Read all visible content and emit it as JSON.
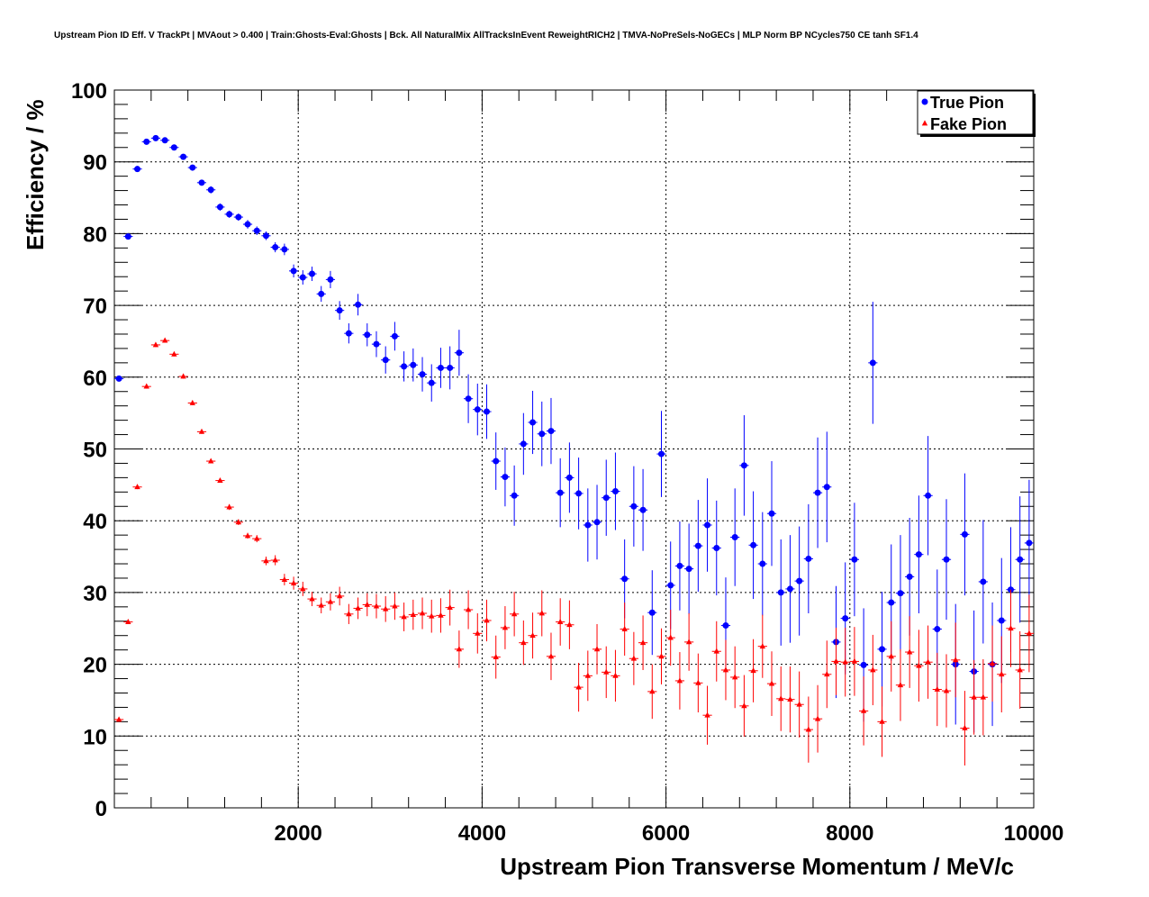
{
  "chart_data": {
    "type": "scatter",
    "title": "Upstream Pion ID Eff. V TrackPt | MVAout > 0.400 | Train:Ghosts-Eval:Ghosts | Bck. All NaturalMix AllTracksInEvent ReweightRICH2 | TMVA-NoPreSels-NoGECs | MLP Norm BP NCycles750 CE tanh SF1.4",
    "xlabel": "Upstream Pion Transverse Momentum / MeV/c",
    "ylabel": "Efficiency / %",
    "xlim": [
      0,
      10000
    ],
    "ylim": [
      0,
      100
    ],
    "xticks": [
      2000,
      4000,
      6000,
      8000,
      10000
    ],
    "yticks": [
      0,
      10,
      20,
      30,
      40,
      50,
      60,
      70,
      80,
      90,
      100
    ],
    "grid": true,
    "legend_position": "top-right",
    "bin_width": 100,
    "series": [
      {
        "name": "True Pion",
        "marker": "circle",
        "color": "#0000ff",
        "x": [
          50,
          150,
          250,
          350,
          450,
          550,
          650,
          750,
          850,
          950,
          1050,
          1150,
          1250,
          1350,
          1450,
          1550,
          1650,
          1750,
          1850,
          1950,
          2050,
          2150,
          2250,
          2350,
          2450,
          2550,
          2650,
          2750,
          2850,
          2950,
          3050,
          3150,
          3250,
          3350,
          3450,
          3550,
          3650,
          3750,
          3850,
          3950,
          4050,
          4150,
          4250,
          4350,
          4450,
          4550,
          4650,
          4750,
          4850,
          4950,
          5050,
          5150,
          5250,
          5350,
          5450,
          5550,
          5650,
          5750,
          5850,
          5950,
          6050,
          6150,
          6250,
          6350,
          6450,
          6550,
          6650,
          6750,
          6850,
          6950,
          7050,
          7150,
          7250,
          7350,
          7450,
          7550,
          7650,
          7750,
          7850,
          7950,
          8050,
          8150,
          8250,
          8350,
          8450,
          8550,
          8650,
          8750,
          8850,
          8950,
          9050,
          9150,
          9250,
          9350,
          9450,
          9550,
          9650,
          9750,
          9850,
          9950
        ],
        "y": [
          59.8,
          79.6,
          89.0,
          92.8,
          93.3,
          93.0,
          92.0,
          90.7,
          89.2,
          87.1,
          86.1,
          83.7,
          82.7,
          82.3,
          81.3,
          80.4,
          79.7,
          78.1,
          77.8,
          74.8,
          73.9,
          74.4,
          71.6,
          73.6,
          69.3,
          66.1,
          70.1,
          65.9,
          64.6,
          62.4,
          65.7,
          61.5,
          61.7,
          60.4,
          59.2,
          61.3,
          61.3,
          63.4,
          57.0,
          55.5,
          55.2,
          48.3,
          46.1,
          43.5,
          50.7,
          53.7,
          52.1,
          52.5,
          43.9,
          46.0,
          43.8,
          39.4,
          39.8,
          43.2,
          44.1,
          31.9,
          42.0,
          41.5,
          27.2,
          49.3,
          31.0,
          33.7,
          33.3,
          36.5,
          39.4,
          36.2,
          25.4,
          37.7,
          47.7,
          36.6,
          34.0,
          41.0,
          30.0,
          30.5,
          31.6,
          34.7,
          43.9,
          44.7,
          23.1,
          26.4,
          34.6,
          19.9,
          62.0,
          22.1,
          28.6,
          29.9,
          32.2,
          35.3,
          43.5,
          24.9,
          34.6,
          20.0,
          38.1,
          19.0,
          31.5,
          20.0,
          26.1,
          30.4,
          34.6,
          36.9
        ],
        "yerr": [
          0.4,
          0.4,
          0.4,
          0.4,
          0.4,
          0.4,
          0.4,
          0.4,
          0.4,
          0.4,
          0.5,
          0.5,
          0.5,
          0.5,
          0.6,
          0.6,
          0.6,
          0.7,
          0.8,
          0.9,
          1.0,
          1.0,
          1.1,
          1.2,
          1.3,
          1.4,
          1.5,
          1.6,
          1.8,
          1.9,
          2.0,
          2.1,
          2.3,
          2.4,
          2.6,
          2.8,
          3.0,
          3.2,
          3.4,
          3.6,
          3.8,
          4.0,
          4.1,
          4.2,
          4.3,
          4.4,
          4.5,
          4.6,
          4.8,
          4.9,
          5.0,
          5.1,
          5.2,
          5.3,
          5.4,
          5.5,
          5.6,
          5.7,
          5.9,
          6.0,
          6.1,
          6.2,
          6.3,
          6.4,
          6.5,
          6.6,
          6.7,
          6.8,
          7.0,
          7.5,
          7.2,
          7.3,
          7.4,
          7.5,
          7.6,
          7.6,
          7.7,
          7.7,
          7.8,
          7.8,
          7.9,
          7.9,
          8.5,
          8.0,
          8.1,
          8.1,
          8.2,
          8.2,
          8.3,
          8.3,
          8.4,
          8.4,
          8.5,
          8.5,
          8.6,
          8.6,
          8.7,
          8.7,
          8.8,
          8.8
        ]
      },
      {
        "name": "Fake Pion",
        "marker": "triangle",
        "color": "#ff0000",
        "x": [
          50,
          150,
          250,
          350,
          450,
          550,
          650,
          750,
          850,
          950,
          1050,
          1150,
          1250,
          1350,
          1450,
          1550,
          1650,
          1750,
          1850,
          1950,
          2050,
          2150,
          2250,
          2350,
          2450,
          2550,
          2650,
          2750,
          2850,
          2950,
          3050,
          3150,
          3250,
          3350,
          3450,
          3550,
          3650,
          3750,
          3850,
          3950,
          4050,
          4150,
          4250,
          4350,
          4450,
          4550,
          4650,
          4750,
          4850,
          4950,
          5050,
          5150,
          5250,
          5350,
          5450,
          5550,
          5650,
          5750,
          5850,
          5950,
          6050,
          6150,
          6250,
          6350,
          6450,
          6550,
          6650,
          6750,
          6850,
          6950,
          7050,
          7150,
          7250,
          7350,
          7450,
          7550,
          7650,
          7750,
          7850,
          7950,
          8050,
          8150,
          8250,
          8350,
          8450,
          8550,
          8650,
          8750,
          8850,
          8950,
          9050,
          9150,
          9250,
          9350,
          9450,
          9550,
          9650,
          9750,
          9850,
          9950
        ],
        "y": [
          12.3,
          25.9,
          44.7,
          58.7,
          64.5,
          65.1,
          63.2,
          60.1,
          56.4,
          52.4,
          48.3,
          45.6,
          41.9,
          39.8,
          37.9,
          37.5,
          34.4,
          34.5,
          31.8,
          31.3,
          30.5,
          29.1,
          28.2,
          28.7,
          29.5,
          27.0,
          27.8,
          28.3,
          28.1,
          27.7,
          28.1,
          26.6,
          26.9,
          27.1,
          26.7,
          26.8,
          27.9,
          22.1,
          27.6,
          24.3,
          26.1,
          21.0,
          25.1,
          27.0,
          23.0,
          24.0,
          27.1,
          21.1,
          25.9,
          25.5,
          16.8,
          18.4,
          22.1,
          18.9,
          18.4,
          24.9,
          20.8,
          23.0,
          16.2,
          21.1,
          23.7,
          17.7,
          23.1,
          17.4,
          12.9,
          21.8,
          19.2,
          18.2,
          14.2,
          19.1,
          22.5,
          17.3,
          15.2,
          15.1,
          14.4,
          10.9,
          12.4,
          18.6,
          20.4,
          20.3,
          20.4,
          13.5,
          19.2,
          12.0,
          21.1,
          17.1,
          21.7,
          19.8,
          20.3,
          16.5,
          16.3,
          20.6,
          11.1,
          15.4,
          15.4,
          20.1,
          18.6,
          25.0,
          19.2,
          24.3
        ],
        "yerr": [
          0.3,
          0.3,
          0.3,
          0.3,
          0.3,
          0.3,
          0.3,
          0.3,
          0.3,
          0.3,
          0.3,
          0.3,
          0.4,
          0.4,
          0.4,
          0.5,
          0.6,
          0.7,
          0.8,
          0.9,
          1.0,
          1.0,
          1.1,
          1.2,
          1.3,
          1.4,
          1.5,
          1.6,
          1.7,
          1.8,
          1.9,
          2.0,
          2.1,
          2.2,
          2.3,
          2.4,
          2.5,
          2.6,
          2.7,
          2.8,
          2.9,
          3.0,
          3.0,
          3.1,
          3.1,
          3.2,
          3.2,
          3.3,
          3.3,
          3.4,
          3.4,
          3.5,
          3.5,
          3.6,
          3.6,
          3.7,
          3.7,
          3.8,
          3.8,
          3.9,
          3.9,
          4.0,
          4.0,
          4.1,
          4.1,
          4.2,
          4.2,
          4.3,
          4.3,
          4.4,
          4.4,
          4.5,
          4.5,
          4.6,
          4.6,
          4.6,
          4.7,
          4.7,
          4.7,
          4.8,
          4.8,
          4.8,
          4.9,
          4.9,
          4.9,
          5.0,
          5.0,
          5.0,
          5.1,
          5.1,
          5.1,
          5.2,
          5.2,
          5.2,
          5.3,
          5.3,
          5.3,
          5.4,
          5.4,
          5.4
        ]
      }
    ]
  }
}
